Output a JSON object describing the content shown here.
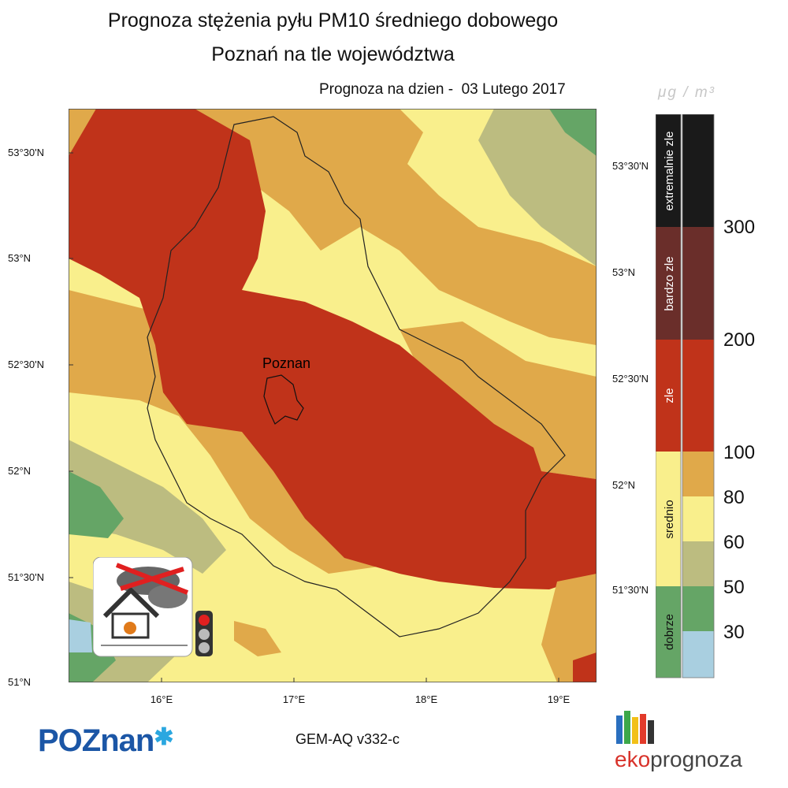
{
  "header": {
    "title_line1": "Prognoza stężenia pyłu PM10 średniego dobowego",
    "title_line2": "Poznań na tle województwa",
    "date_label": "Prognoza na dzien -  03 Lutego 2017",
    "unit": "μg / m³"
  },
  "map": {
    "city_label": "Poznan",
    "lat_labels_left": [
      "53°30'N",
      "53°N",
      "52°30'N",
      "52°N",
      "51°30'N",
      "51°N"
    ],
    "lat_labels_right": [
      "53°30'N",
      "53°N",
      "52°30'N",
      "52°N",
      "51°30'N"
    ],
    "lon_labels": [
      "16°E",
      "17°E",
      "18°E",
      "19°E"
    ]
  },
  "legend": {
    "categories": [
      "dobrze",
      "srednio",
      "zle",
      "bardzo zle",
      "extremalnie zle"
    ],
    "ticks": [
      "30",
      "50",
      "60",
      "80",
      "100",
      "200",
      "300"
    ],
    "colors": {
      "lt30": "#a9cfe0",
      "c30_50": "#65a566",
      "c50_60": "#bcbc80",
      "c60_80": "#f9ef8c",
      "c80_100": "#e0a94a",
      "c100_200": "#c0331a",
      "c200_300": "#6a2e2a",
      "c300": "#1a1a1a",
      "cat_dobrze": "#65a566",
      "cat_srednio": "#f9ef8c",
      "cat_zle": "#c0331a",
      "cat_bardzo": "#6a2e2a",
      "cat_extrem": "#1a1a1a"
    }
  },
  "footer": {
    "model": "GEM-AQ v332-c",
    "logo_left": "POZnan",
    "logo_right_a": "eko",
    "logo_right_b": "prognoza"
  }
}
